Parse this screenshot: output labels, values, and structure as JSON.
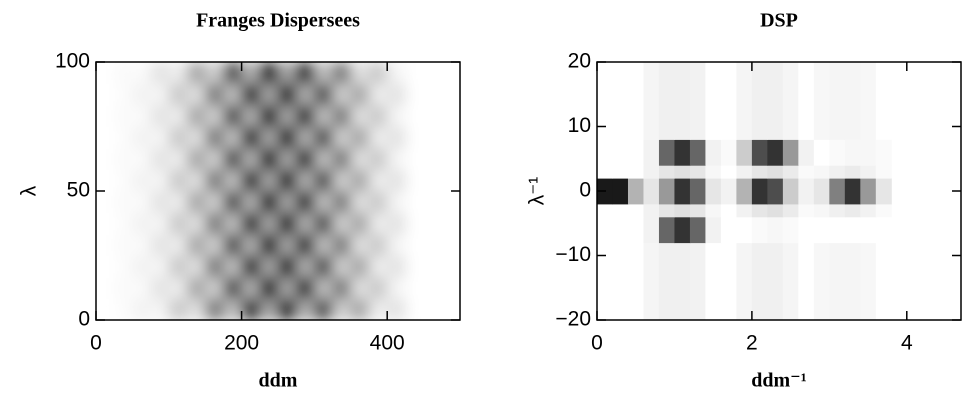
{
  "chart_data": [
    {
      "type": "heatmap",
      "title": "Franges Dispersees",
      "xlabel": "ddm",
      "ylabel": "λ",
      "cmap": "Greys",
      "interpolation": "bicubic",
      "xlim": [
        0,
        500
      ],
      "ylim": [
        0,
        100
      ],
      "xticks": [
        0,
        200,
        400
      ],
      "yticks": [
        0,
        50,
        100
      ],
      "xbins": [
        25,
        50,
        75,
        100,
        125,
        150,
        175,
        200,
        225,
        250,
        275,
        300,
        325,
        350,
        375,
        400,
        425
      ],
      "ybins": [
        0,
        8.33,
        16.67,
        25,
        33.33,
        41.67,
        50,
        58.33,
        66.67,
        75,
        83.33,
        91.67,
        100
      ],
      "z": [
        [
          0.01,
          0.05,
          0.04,
          0.21,
          0.12,
          0.53,
          0.25,
          0.89,
          0.35,
          0.99,
          0.31,
          0.72,
          0.19,
          0.35,
          0.07,
          0.11
        ],
        [
          0.02,
          0.02,
          0.11,
          0.07,
          0.35,
          0.19,
          0.72,
          0.31,
          0.99,
          0.35,
          0.89,
          0.25,
          0.53,
          0.12,
          0.21,
          0.04
        ],
        [
          0.01,
          0.05,
          0.04,
          0.21,
          0.12,
          0.53,
          0.25,
          0.89,
          0.35,
          0.99,
          0.31,
          0.72,
          0.19,
          0.35,
          0.07,
          0.11
        ],
        [
          0.02,
          0.02,
          0.11,
          0.07,
          0.35,
          0.19,
          0.72,
          0.31,
          0.99,
          0.35,
          0.89,
          0.25,
          0.53,
          0.12,
          0.21,
          0.04
        ],
        [
          0.01,
          0.05,
          0.04,
          0.21,
          0.12,
          0.53,
          0.25,
          0.89,
          0.35,
          0.99,
          0.31,
          0.72,
          0.19,
          0.35,
          0.07,
          0.11
        ],
        [
          0.02,
          0.02,
          0.11,
          0.07,
          0.35,
          0.19,
          0.72,
          0.31,
          0.99,
          0.35,
          0.89,
          0.25,
          0.53,
          0.12,
          0.21,
          0.04
        ],
        [
          0.01,
          0.05,
          0.04,
          0.21,
          0.12,
          0.53,
          0.25,
          0.89,
          0.35,
          0.99,
          0.31,
          0.72,
          0.19,
          0.35,
          0.07,
          0.11
        ],
        [
          0.02,
          0.02,
          0.11,
          0.07,
          0.35,
          0.19,
          0.72,
          0.31,
          0.99,
          0.35,
          0.89,
          0.25,
          0.53,
          0.12,
          0.21,
          0.04
        ],
        [
          0.01,
          0.05,
          0.04,
          0.21,
          0.12,
          0.53,
          0.25,
          0.89,
          0.35,
          0.99,
          0.31,
          0.72,
          0.19,
          0.35,
          0.07,
          0.11
        ],
        [
          0.02,
          0.02,
          0.11,
          0.07,
          0.35,
          0.19,
          0.72,
          0.31,
          0.99,
          0.35,
          0.89,
          0.25,
          0.53,
          0.12,
          0.21,
          0.04
        ],
        [
          0.01,
          0.05,
          0.04,
          0.21,
          0.12,
          0.53,
          0.25,
          0.89,
          0.35,
          0.99,
          0.31,
          0.72,
          0.19,
          0.35,
          0.07,
          0.11
        ],
        [
          0.02,
          0.02,
          0.11,
          0.07,
          0.35,
          0.19,
          0.72,
          0.31,
          0.99,
          0.35,
          0.89,
          0.25,
          0.53,
          0.12,
          0.21,
          0.04
        ]
      ]
    },
    {
      "type": "heatmap",
      "title": "DSP",
      "xlabel": "ddm⁻¹",
      "ylabel": "λ⁻¹",
      "cmap": "Greys",
      "interpolation": "nearest",
      "xlim": [
        0,
        4.7
      ],
      "ylim": [
        -20,
        20
      ],
      "xticks": [
        0,
        2,
        4
      ],
      "yticks": [
        {
          "value": -20,
          "label": "−20"
        },
        {
          "value": -10,
          "label": "−10"
        },
        0,
        10,
        20
      ],
      "xbins": [
        0,
        0.2,
        0.4,
        0.6,
        0.8,
        1.0,
        1.2,
        1.4,
        1.6,
        1.8,
        2.0,
        2.2,
        2.4,
        2.6,
        2.8,
        3.0,
        3.2,
        3.4,
        3.6,
        3.8
      ],
      "ybins": [
        -20,
        -8,
        -4,
        -2,
        2,
        4,
        8,
        20
      ],
      "z": [
        [
          0,
          0,
          0,
          0.04,
          0.06,
          0.06,
          0.05,
          0,
          0,
          0.04,
          0.06,
          0.06,
          0.04,
          0,
          0.03,
          0.04,
          0.04,
          0.03,
          0
        ],
        [
          0,
          0,
          0,
          0.05,
          0.6,
          0.8,
          0.6,
          0.05,
          0,
          0,
          0.02,
          0.03,
          0.02,
          0,
          0,
          0,
          0,
          0,
          0
        ],
        [
          0,
          0,
          0,
          0.05,
          0.1,
          0.12,
          0.1,
          0.03,
          0,
          0.05,
          0.1,
          0.12,
          0.08,
          0.02,
          0.03,
          0.06,
          0.08,
          0.05,
          0.02
        ],
        [
          0.9,
          0.9,
          0.3,
          0.1,
          0.4,
          0.8,
          0.6,
          0.1,
          0.05,
          0.3,
          0.8,
          0.7,
          0.2,
          0.05,
          0.1,
          0.5,
          0.8,
          0.4,
          0.1
        ],
        [
          0,
          0,
          0,
          0.05,
          0.1,
          0.12,
          0.1,
          0.03,
          0,
          0.05,
          0.1,
          0.12,
          0.08,
          0.02,
          0.03,
          0.06,
          0.08,
          0.05,
          0.02
        ],
        [
          0,
          0,
          0,
          0.05,
          0.6,
          0.8,
          0.6,
          0.05,
          0.02,
          0.2,
          0.7,
          0.8,
          0.4,
          0.05,
          0,
          0.02,
          0.03,
          0.03,
          0.02
        ],
        [
          0,
          0,
          0,
          0.04,
          0.06,
          0.06,
          0.05,
          0,
          0,
          0.04,
          0.06,
          0.06,
          0.04,
          0,
          0.03,
          0.04,
          0.04,
          0.03,
          0
        ]
      ]
    }
  ]
}
